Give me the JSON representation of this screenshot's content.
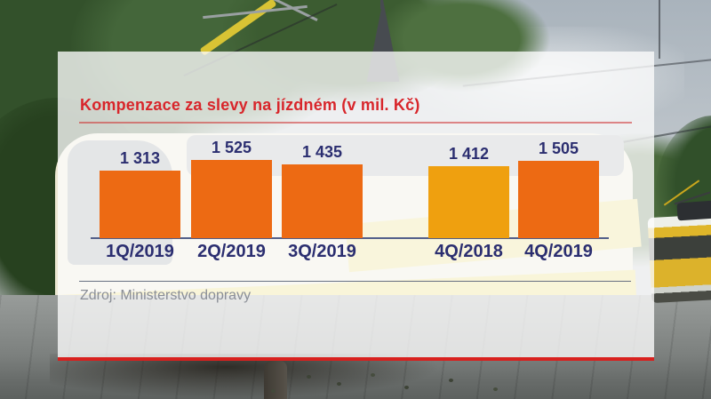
{
  "chart_data": {
    "type": "bar",
    "title": "Kompenzace za slevy na jízdném (v mil. Kč)",
    "unit": "mil. Kč",
    "categories": [
      "1Q/2019",
      "2Q/2019",
      "3Q/2019",
      "4Q/2018",
      "4Q/2019"
    ],
    "values": [
      1313,
      1525,
      1435,
      1412,
      1505
    ],
    "value_labels": [
      "1 313",
      "1 525",
      "1 435",
      "1 412",
      "1 505"
    ],
    "bar_colors": [
      "#ed6a13",
      "#ed6a13",
      "#ed6a13",
      "#efa00f",
      "#ed6a13"
    ],
    "highlight_category": "4Q/2018",
    "ylim": [
      0,
      1525
    ],
    "grid": false,
    "legend": false,
    "source": "Zdroj: Ministerstvo dopravy"
  },
  "colors": {
    "title_red": "#d8262b",
    "label_navy": "#2b2e70",
    "axis_line": "#53608a",
    "source_gray": "#8a8e96",
    "bottom_strip_red": "#d8201e",
    "bar_orange": "#ed6a13",
    "bar_amber_highlight": "#efa00f",
    "panel_bg": "rgba(252,252,253,0.78)"
  }
}
